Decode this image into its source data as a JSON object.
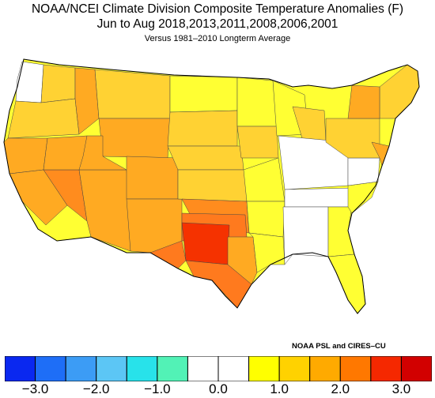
{
  "header": {
    "title": "NOAA/NCEI Climate Division Composite Temperature Anomalies (F)",
    "subtitle": "Jun to Aug  2018,2013,2011,2008,2006,2001",
    "note": "Versus 1981–2010 Longterm Average"
  },
  "credit": "NOAA PSL and CIRES–CU",
  "colorbar": {
    "bins": [
      {
        "lo": -3.5,
        "hi": -3.0,
        "color": "#0a28f0"
      },
      {
        "lo": -3.0,
        "hi": -2.5,
        "color": "#1e6ef7"
      },
      {
        "lo": -2.5,
        "hi": -2.0,
        "color": "#3c9cf5"
      },
      {
        "lo": -2.0,
        "hi": -1.5,
        "color": "#5cc6f5"
      },
      {
        "lo": -1.5,
        "hi": -1.0,
        "color": "#28e2ea"
      },
      {
        "lo": -1.0,
        "hi": -0.5,
        "color": "#52f2b6"
      },
      {
        "lo": -0.5,
        "hi": 0.0,
        "color": "#ffffff"
      },
      {
        "lo": 0.0,
        "hi": 0.5,
        "color": "#ffffff"
      },
      {
        "lo": 0.5,
        "hi": 1.0,
        "color": "#ffff00"
      },
      {
        "lo": 1.0,
        "hi": 1.5,
        "color": "#ffd200"
      },
      {
        "lo": 1.5,
        "hi": 2.0,
        "color": "#ffaa00"
      },
      {
        "lo": 2.0,
        "hi": 2.5,
        "color": "#ff7800"
      },
      {
        "lo": 2.5,
        "hi": 3.0,
        "color": "#f52800"
      },
      {
        "lo": 3.0,
        "hi": 3.5,
        "color": "#d20000"
      }
    ],
    "tick_labels": [
      "−3.0",
      "−2.0",
      "−1.0",
      "0.0",
      "1.0",
      "2.0",
      "3.0"
    ],
    "tick_values": [
      -3,
      -2,
      -1,
      0,
      1,
      2,
      3
    ]
  }
}
